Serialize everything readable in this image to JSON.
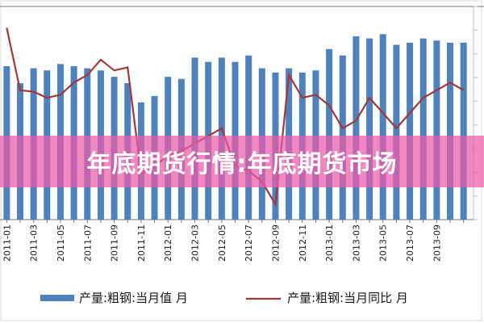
{
  "banner": {
    "title": "年底期货行情:年底期货市场"
  },
  "chart_data": {
    "type": "bar",
    "categories": [
      "2011-01",
      "2011-02",
      "2011-03",
      "2011-04",
      "2011-05",
      "2011-06",
      "2011-07",
      "2011-08",
      "2011-09",
      "2011-10",
      "2011-11",
      "2011-12",
      "2012-01",
      "2012-02",
      "2012-03",
      "2012-04",
      "2012-05",
      "2012-06",
      "2012-07",
      "2012-08",
      "2012-09",
      "2012-10",
      "2012-11",
      "2012-12",
      "2013-01",
      "2013-02",
      "2013-03",
      "2013-04",
      "2013-05",
      "2013-06",
      "2013-07",
      "2013-08",
      "2013-09",
      "2013-10",
      "2013-11"
    ],
    "tick_labels": [
      "2011-01",
      "2011-03",
      "2011-05",
      "2011-07",
      "2011-09",
      "2011-11",
      "2012-01",
      "2012-03",
      "2012-05",
      "2012-07",
      "2012-09",
      "2012-11",
      "2013-01",
      "2013-03",
      "2013-05",
      "2013-07",
      "2013-09"
    ],
    "series": [
      {
        "name": "产量:粗钢:当月值 月",
        "kind": "bar",
        "values": [
          0.72,
          0.64,
          0.71,
          0.7,
          0.73,
          0.72,
          0.71,
          0.7,
          0.67,
          0.64,
          0.55,
          0.58,
          0.67,
          0.66,
          0.76,
          0.74,
          0.76,
          0.74,
          0.77,
          0.71,
          0.69,
          0.71,
          0.69,
          0.7,
          0.8,
          0.77,
          0.86,
          0.85,
          0.87,
          0.82,
          0.83,
          0.85,
          0.84,
          0.83,
          0.83
        ]
      },
      {
        "name": "产量:粗钢:当月同比 月",
        "kind": "line",
        "values": [
          0.86,
          0.45,
          0.44,
          0.4,
          0.42,
          0.5,
          0.55,
          0.65,
          0.58,
          0.6,
          -0.1,
          -0.05,
          0.02,
          0.05,
          0.1,
          0.15,
          0.2,
          -0.05,
          -0.08,
          -0.15,
          -0.3,
          0.55,
          0.4,
          0.42,
          0.35,
          0.2,
          0.25,
          0.4,
          0.3,
          0.2,
          0.3,
          0.4,
          0.45,
          0.5,
          0.45
        ]
      }
    ],
    "bar_color": "#4f81bd",
    "line_color": "#a0393a",
    "ylim_bar": [
      0,
      1
    ],
    "ylim_line": [
      -0.4,
      1
    ],
    "legend_position": "bottom"
  },
  "legend": {
    "bar_label": "产量:粗钢:当月值 月",
    "line_label": "产量:粗钢:当月同比 月"
  }
}
